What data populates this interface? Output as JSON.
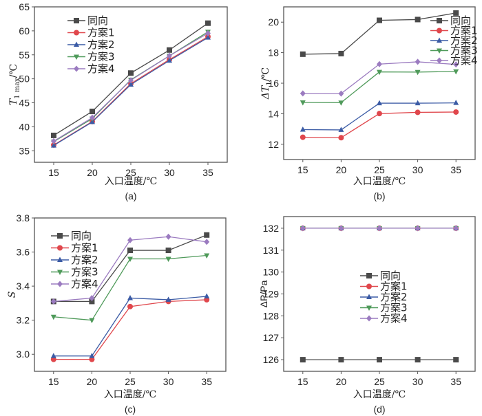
{
  "chart_data": [
    {
      "id": "a",
      "type": "line",
      "panel_label": "(a)",
      "xlabel": "入口温度/℃",
      "ylabel": "T1max/℃",
      "ylabel_main": "T",
      "ylabel_sub": "1 max",
      "ylabel_unit": "/℃",
      "x": [
        15,
        20,
        25,
        30,
        35
      ],
      "xticks": [
        15,
        20,
        25,
        30,
        35
      ],
      "xlim": [
        12.5,
        37.5
      ],
      "yticks": [
        35,
        40,
        45,
        50,
        55,
        60,
        65
      ],
      "ylim": [
        32.6,
        65
      ],
      "grid": false,
      "legend_position": "top-left",
      "series": [
        {
          "name": "同向",
          "marker": "square",
          "color": "#4a4a4a",
          "values": [
            38.2,
            43.2,
            51.2,
            56.0,
            61.6
          ]
        },
        {
          "name": "方案1",
          "marker": "circle",
          "color": "#e0474c",
          "values": [
            36.2,
            41.1,
            49.0,
            54.0,
            58.8
          ]
        },
        {
          "name": "方案2",
          "marker": "triangle-up",
          "color": "#3b5ba5",
          "values": [
            36.1,
            41.0,
            48.8,
            53.8,
            58.6
          ]
        },
        {
          "name": "方案3",
          "marker": "triangle-down",
          "color": "#4f9a5a",
          "values": [
            36.9,
            41.7,
            49.8,
            54.8,
            59.8
          ]
        },
        {
          "name": "方案4",
          "marker": "diamond",
          "color": "#9b7bc0",
          "values": [
            37.0,
            41.9,
            49.7,
            54.8,
            59.5
          ]
        }
      ]
    },
    {
      "id": "b",
      "type": "line",
      "panel_label": "(b)",
      "xlabel": "入口温度/℃",
      "ylabel": "ΔT1/℃",
      "ylabel_main": "ΔT",
      "ylabel_sub": "1",
      "ylabel_unit": "/℃",
      "x": [
        15,
        20,
        25,
        30,
        35
      ],
      "xticks": [
        15,
        20,
        25,
        30,
        35
      ],
      "xlim": [
        12.5,
        37.5
      ],
      "yticks": [
        12,
        14,
        16,
        18,
        20
      ],
      "ylim": [
        11.0,
        21.0
      ],
      "grid": false,
      "legend_position": "top-right",
      "series": [
        {
          "name": "同向",
          "marker": "square",
          "color": "#4a4a4a",
          "values": [
            17.9,
            17.94,
            20.12,
            20.17,
            20.6
          ]
        },
        {
          "name": "方案1",
          "marker": "circle",
          "color": "#e0474c",
          "values": [
            12.46,
            12.43,
            14.01,
            14.09,
            14.11
          ]
        },
        {
          "name": "方案2",
          "marker": "triangle-up",
          "color": "#3b5ba5",
          "values": [
            12.96,
            12.94,
            14.69,
            14.69,
            14.71
          ]
        },
        {
          "name": "方案3",
          "marker": "triangle-down",
          "color": "#4f9a5a",
          "values": [
            14.74,
            14.73,
            16.74,
            16.73,
            16.77
          ]
        },
        {
          "name": "方案4",
          "marker": "diamond",
          "color": "#9b7bc0",
          "values": [
            15.33,
            15.32,
            17.25,
            17.4,
            17.23
          ]
        }
      ]
    },
    {
      "id": "c",
      "type": "line",
      "panel_label": "(c)",
      "xlabel": "入口温度/℃",
      "ylabel": "S",
      "ylabel_main": "S",
      "ylabel_sub": "",
      "ylabel_unit": "",
      "x": [
        15,
        20,
        25,
        30,
        35
      ],
      "xticks": [
        15,
        20,
        25,
        30,
        35
      ],
      "xlim": [
        12.5,
        37.5
      ],
      "yticks": [
        3.0,
        3.2,
        3.4,
        3.6,
        3.8
      ],
      "ylim": [
        2.9,
        3.8
      ],
      "grid": false,
      "legend_position": "top-left",
      "series": [
        {
          "name": "同向",
          "marker": "square",
          "color": "#4a4a4a",
          "values": [
            3.31,
            3.31,
            3.61,
            3.61,
            3.7
          ]
        },
        {
          "name": "方案1",
          "marker": "circle",
          "color": "#e0474c",
          "values": [
            2.97,
            2.97,
            3.28,
            3.31,
            3.32
          ]
        },
        {
          "name": "方案2",
          "marker": "triangle-up",
          "color": "#3b5ba5",
          "values": [
            2.99,
            2.99,
            3.33,
            3.32,
            3.34
          ]
        },
        {
          "name": "方案3",
          "marker": "triangle-down",
          "color": "#4f9a5a",
          "values": [
            3.22,
            3.2,
            3.56,
            3.56,
            3.58
          ]
        },
        {
          "name": "方案4",
          "marker": "diamond",
          "color": "#9b7bc0",
          "values": [
            3.31,
            3.33,
            3.67,
            3.69,
            3.66
          ]
        }
      ]
    },
    {
      "id": "d",
      "type": "line",
      "panel_label": "(d)",
      "xlabel": "入口温度/℃",
      "ylabel": "ΔP/Pa",
      "ylabel_main": "ΔP",
      "ylabel_sub": "",
      "ylabel_unit": "/Pa",
      "x": [
        15,
        20,
        25,
        30,
        35
      ],
      "xticks": [
        15,
        20,
        25,
        30,
        35
      ],
      "xlim": [
        12.5,
        37.5
      ],
      "yticks": [
        126,
        127,
        128,
        129,
        130,
        131,
        132
      ],
      "ylim": [
        125.47,
        132.53
      ],
      "grid": false,
      "legend_position": "center",
      "series": [
        {
          "name": "同向",
          "marker": "square",
          "color": "#4a4a4a",
          "values": [
            126,
            126,
            126,
            126,
            126
          ]
        },
        {
          "name": "方案1",
          "marker": "circle",
          "color": "#e0474c",
          "values": [
            132,
            132,
            132,
            132,
            132
          ]
        },
        {
          "name": "方案2",
          "marker": "triangle-up",
          "color": "#3b5ba5",
          "values": [
            132,
            132,
            132,
            132,
            132
          ]
        },
        {
          "name": "方案3",
          "marker": "triangle-down",
          "color": "#4f9a5a",
          "values": [
            132,
            132,
            132,
            132,
            132
          ]
        },
        {
          "name": "方案4",
          "marker": "diamond",
          "color": "#9b7bc0",
          "values": [
            132,
            132,
            132,
            132,
            132
          ]
        }
      ]
    }
  ]
}
